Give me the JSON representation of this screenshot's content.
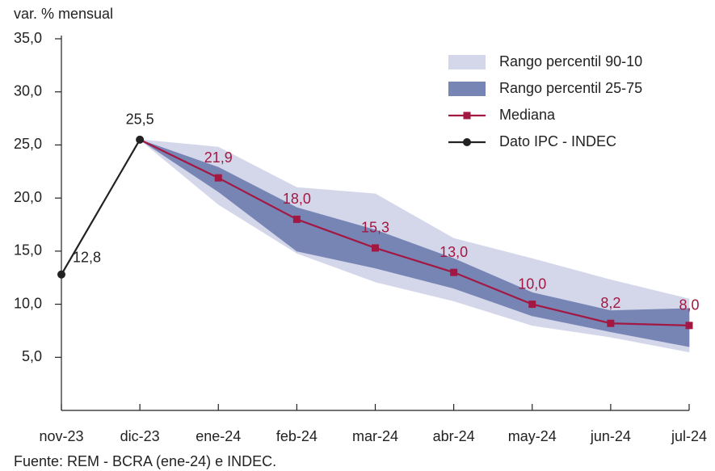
{
  "chart_data": {
    "type": "line",
    "y_label": "var. % mensual",
    "source": "Fuente: REM - BCRA (ene-24) e INDEC.",
    "categories": [
      "nov-23",
      "dic-23",
      "ene-24",
      "feb-24",
      "mar-24",
      "abr-24",
      "may-24",
      "jun-24",
      "jul-24"
    ],
    "ylim": [
      0,
      35
    ],
    "yticks": [
      {
        "value": 5,
        "label": "5,0"
      },
      {
        "value": 10,
        "label": "10,0"
      },
      {
        "value": 15,
        "label": "15,0"
      },
      {
        "value": 20,
        "label": "20,0"
      },
      {
        "value": 25,
        "label": "25,0"
      },
      {
        "value": 30,
        "label": "30,0"
      },
      {
        "value": 35,
        "label": "35,0"
      }
    ],
    "legend": "top-right",
    "series": [
      {
        "name": "Rango percentil 90-10",
        "kind": "band",
        "color": "#d4d7ea",
        "low": [
          null,
          25.5,
          19.4,
          14.8,
          12.1,
          10.3,
          8.0,
          6.9,
          5.5
        ],
        "high": [
          null,
          25.5,
          24.8,
          21.0,
          20.4,
          16.2,
          14.3,
          12.3,
          10.5
        ]
      },
      {
        "name": "Rango percentil 25-75",
        "kind": "band",
        "color": "#7785b5",
        "low": [
          null,
          25.5,
          20.6,
          15.0,
          13.4,
          11.5,
          8.9,
          7.4,
          6.0
        ],
        "high": [
          null,
          25.5,
          22.9,
          19.1,
          17.0,
          14.3,
          11.1,
          9.4,
          9.6
        ]
      },
      {
        "name": "Mediana",
        "kind": "line",
        "marker": "square",
        "color": "#a31842",
        "values": [
          null,
          25.5,
          21.9,
          18.0,
          15.3,
          13.0,
          10.0,
          8.2,
          8.0
        ],
        "value_labels": [
          null,
          null,
          "21,9",
          "18,0",
          "15,3",
          "13,0",
          "10,0",
          "8,2",
          "8,0"
        ]
      },
      {
        "name": "Dato IPC - INDEC",
        "kind": "line",
        "marker": "circle",
        "color": "#222222",
        "values": [
          12.8,
          25.5,
          null,
          null,
          null,
          null,
          null,
          null,
          null
        ],
        "value_labels": [
          "12,8",
          "25,5",
          null,
          null,
          null,
          null,
          null,
          null,
          null
        ]
      }
    ]
  }
}
